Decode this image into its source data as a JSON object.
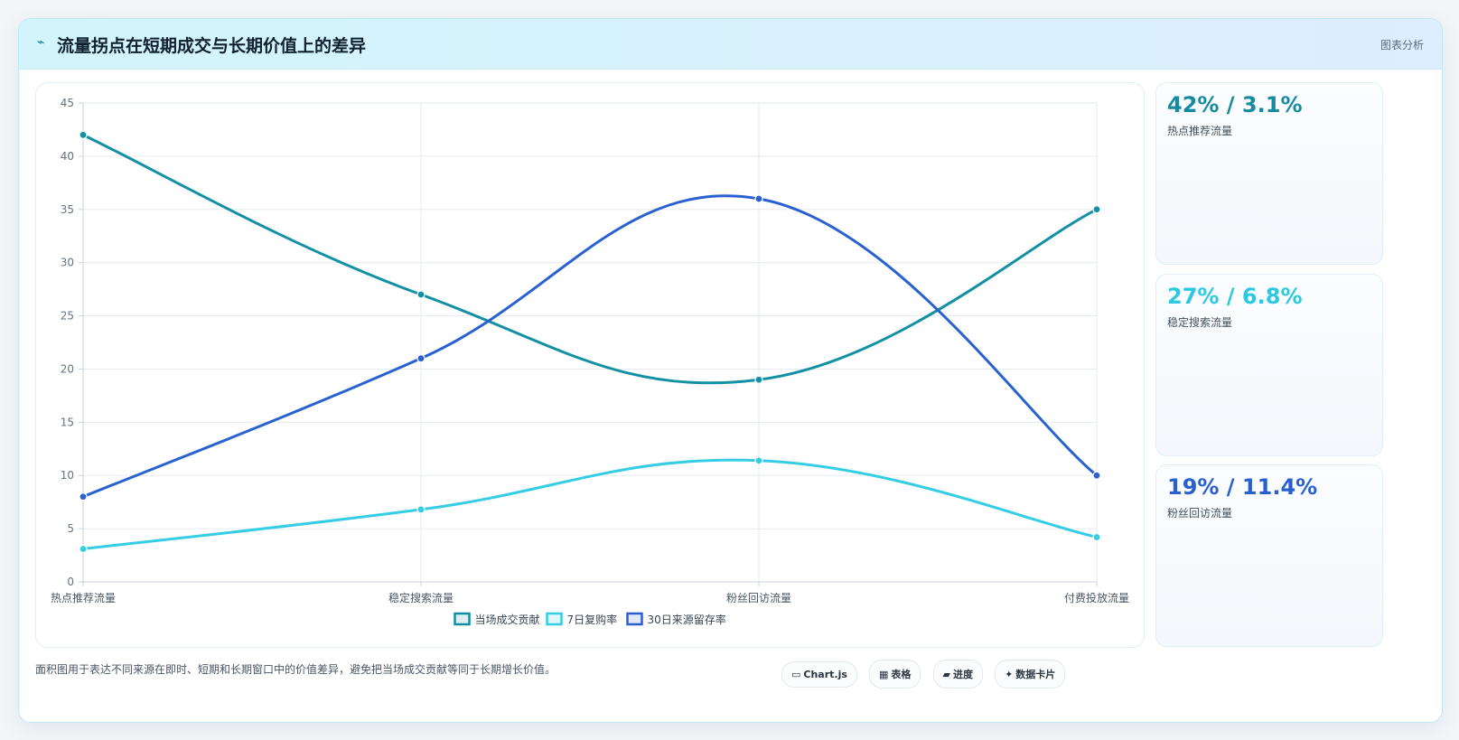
{
  "header": {
    "icon": "⌁",
    "title": "流量拐点在短期成交与长期价值上的差异",
    "tag": "图表分析"
  },
  "chart_data": {
    "type": "line",
    "categories": [
      "热点推荐流量",
      "稳定搜索流量",
      "粉丝回访流量",
      "付费投放流量"
    ],
    "series": [
      {
        "name": "当场成交贡献",
        "values": [
          42,
          27,
          19,
          35
        ],
        "color": "#1390a4"
      },
      {
        "name": "7日复购率",
        "values": [
          3.1,
          6.8,
          11.4,
          4.2
        ],
        "color": "#35cde3"
      },
      {
        "name": "30日来源留存率",
        "values": [
          8,
          21,
          36,
          10
        ],
        "color": "#2a61d1"
      }
    ],
    "ylim": [
      0,
      45
    ],
    "yticks": [
      0,
      5,
      10,
      15,
      20,
      25,
      30,
      35,
      40,
      45
    ],
    "grid": true,
    "legend": "bottom"
  },
  "stats": [
    {
      "value": "42% / 3.1%",
      "label": "热点推荐流量",
      "color": "#168aa0"
    },
    {
      "value": "27% / 6.8%",
      "label": "稳定搜索流量",
      "color": "#2ec9e0"
    },
    {
      "value": "19% / 11.4%",
      "label": "粉丝回访流量",
      "color": "#2a5fcf"
    }
  ],
  "footer": {
    "note": "面积图用于表达不同来源在即时、短期和长期窗口中的价值差异，避免把当场成交贡献等同于长期增长价值。",
    "pills": [
      {
        "icon": "▭",
        "label": "Chart.js"
      },
      {
        "icon": "▦",
        "label": "表格"
      },
      {
        "icon": "▰",
        "label": "进度"
      },
      {
        "icon": "✦",
        "label": "数据卡片"
      }
    ]
  }
}
